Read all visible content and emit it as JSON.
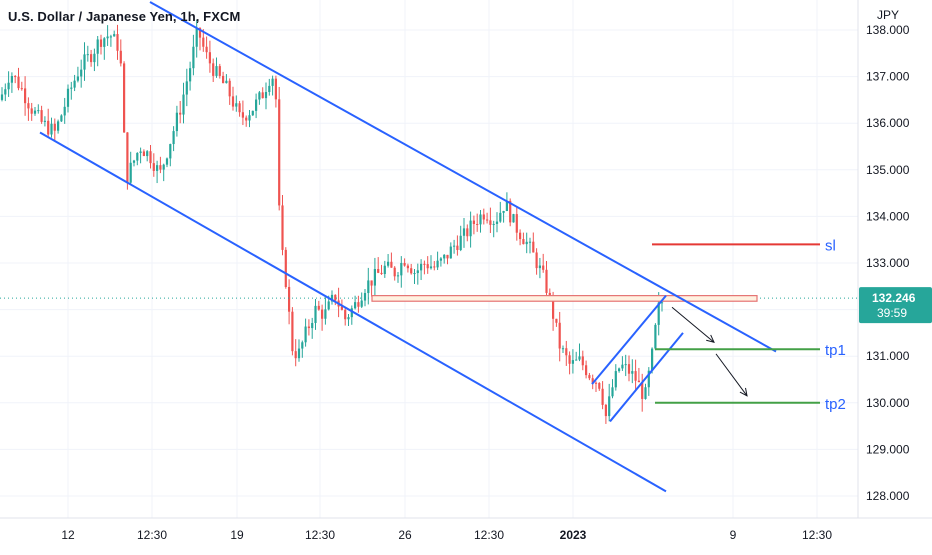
{
  "chart_data": {
    "type": "candlestick",
    "title": "U.S. Dollar / Japanese Yen, 1h, FXCM",
    "currency_label": "JPY",
    "y_axis": {
      "ticks": [
        "128.000",
        "129.000",
        "130.000",
        "131.000",
        "132.000",
        "133.000",
        "134.000",
        "135.000",
        "136.000",
        "137.000",
        "138.000"
      ],
      "ylim": [
        127.5,
        138.3
      ]
    },
    "x_axis": {
      "ticks": [
        "12",
        "12:30",
        "19",
        "12:30",
        "26",
        "12:30",
        "2023",
        "9",
        "12:30"
      ]
    },
    "current_price": {
      "value": 132.246,
      "label": "132.246",
      "countdown": "39:59"
    },
    "price_path": [
      [
        0,
        136.5
      ],
      [
        10,
        137.1
      ],
      [
        20,
        136.8
      ],
      [
        32,
        136.3
      ],
      [
        42,
        136.0
      ],
      [
        55,
        135.8
      ],
      [
        70,
        136.7
      ],
      [
        80,
        137.2
      ],
      [
        92,
        137.5
      ],
      [
        100,
        137.8
      ],
      [
        110,
        137.9
      ],
      [
        120,
        137.6
      ],
      [
        126,
        134.8
      ],
      [
        140,
        135.5
      ],
      [
        150,
        135.3
      ],
      [
        160,
        134.9
      ],
      [
        170,
        135.6
      ],
      [
        180,
        136.3
      ],
      [
        190,
        137.2
      ],
      [
        198,
        138.0
      ],
      [
        205,
        137.5
      ],
      [
        215,
        137.1
      ],
      [
        228,
        136.7
      ],
      [
        240,
        136.1
      ],
      [
        252,
        136.3
      ],
      [
        262,
        136.6
      ],
      [
        272,
        137.1
      ],
      [
        276,
        136.5
      ],
      [
        280,
        133.5
      ],
      [
        286,
        132.6
      ],
      [
        292,
        131.2
      ],
      [
        298,
        131.0
      ],
      [
        306,
        131.5
      ],
      [
        315,
        132.0
      ],
      [
        325,
        131.9
      ],
      [
        335,
        132.3
      ],
      [
        345,
        131.8
      ],
      [
        355,
        132.1
      ],
      [
        365,
        132.5
      ],
      [
        375,
        132.7
      ],
      [
        385,
        132.9
      ],
      [
        395,
        132.8
      ],
      [
        405,
        133.1
      ],
      [
        415,
        132.8
      ],
      [
        425,
        133.0
      ],
      [
        435,
        132.9
      ],
      [
        445,
        133.1
      ],
      [
        455,
        133.4
      ],
      [
        465,
        133.6
      ],
      [
        475,
        133.9
      ],
      [
        485,
        134.1
      ],
      [
        495,
        133.9
      ],
      [
        505,
        134.3
      ],
      [
        515,
        133.8
      ],
      [
        525,
        133.5
      ],
      [
        535,
        133.1
      ],
      [
        545,
        132.6
      ],
      [
        552,
        132.0
      ],
      [
        560,
        131.2
      ],
      [
        570,
        130.8
      ],
      [
        580,
        130.9
      ],
      [
        590,
        130.6
      ],
      [
        600,
        130.4
      ],
      [
        606,
        129.7
      ],
      [
        612,
        130.3
      ],
      [
        620,
        130.8
      ],
      [
        628,
        130.7
      ],
      [
        636,
        130.5
      ],
      [
        645,
        130.1
      ],
      [
        652,
        131.0
      ],
      [
        658,
        132.0
      ],
      [
        664,
        132.25
      ]
    ],
    "channel_lines": [
      {
        "x1": 150,
        "y1": 138.6,
        "x2": 776,
        "y2": 131.1
      },
      {
        "x1": 40,
        "y1": 135.8,
        "x2": 666,
        "y2": 128.1
      },
      {
        "x1": 592,
        "y1": 130.4,
        "x2": 666,
        "y2": 132.3
      },
      {
        "x1": 610,
        "y1": 129.6,
        "x2": 683,
        "y2": 131.5
      }
    ],
    "resistance_zone": {
      "x1": 372,
      "x2": 757,
      "y_top": 132.3,
      "y_bottom": 132.18
    },
    "levels": [
      {
        "label": "sl",
        "value": 133.4,
        "x1": 652,
        "x2": 820,
        "color": "#e53935"
      },
      {
        "label": "tp1",
        "value": 131.15,
        "x1": 655,
        "x2": 820,
        "color": "#43a047"
      },
      {
        "label": "tp2",
        "value": 130.0,
        "x1": 655,
        "x2": 820,
        "color": "#43a047"
      }
    ],
    "arrows": [
      {
        "x1": 672,
        "y1": 132.05,
        "x2": 714,
        "y2": 131.3
      },
      {
        "x1": 716,
        "y1": 131.05,
        "x2": 747,
        "y2": 130.15
      }
    ],
    "colors": {
      "up": "#26a69a",
      "down": "#ef5350",
      "channel": "#2962ff",
      "grid": "#f0f3fa",
      "axis_text": "#131722",
      "price_badge": "#26a69a",
      "zone_fill": "#fff1e0",
      "zone_border": "#e57373",
      "level_text": "#2962ff"
    }
  }
}
